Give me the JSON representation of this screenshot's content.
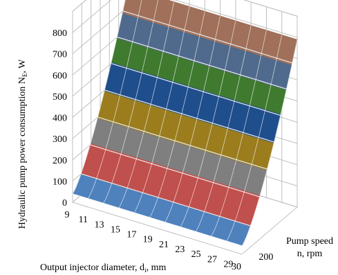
{
  "chart_data": {
    "type": "surface",
    "zlabel": "Hydraulic pump power consumption N",
    "zlabel_subscript": "E",
    "zlabel_unit": ", W",
    "xlabel": "Output injector diameter, d",
    "xlabel_subscript": "i",
    "xlabel_unit": ", mm",
    "ylabel_line1": "Pump speed",
    "ylabel_line2": "n, rpm",
    "x_ticks": [
      "9",
      "11",
      "13",
      "15",
      "17",
      "19",
      "21",
      "23",
      "25",
      "27",
      "29",
      "30"
    ],
    "x_values": [
      9,
      11,
      13,
      15,
      17,
      19,
      21,
      23,
      25,
      27,
      29,
      30
    ],
    "y_ticks": [
      "200"
    ],
    "z_ticks": [
      "0",
      "100",
      "200",
      "300",
      "400",
      "500",
      "600",
      "700",
      "800"
    ],
    "zlim": [
      0,
      800
    ],
    "bands": [
      {
        "range": [
          0,
          100
        ],
        "color": "#4f81bd"
      },
      {
        "range": [
          100,
          200
        ],
        "color": "#c0504d"
      },
      {
        "range": [
          200,
          300
        ],
        "color": "#7f7f7f"
      },
      {
        "range": [
          300,
          400
        ],
        "color": "#9b7d1e"
      },
      {
        "range": [
          400,
          500
        ],
        "color": "#1f4e8c"
      },
      {
        "range": [
          500,
          600
        ],
        "color": "#3f7a2e"
      },
      {
        "range": [
          600,
          700
        ],
        "color": "#4f6a8c"
      },
      {
        "range": [
          700,
          800
        ],
        "color": "#a0705a"
      }
    ],
    "surface_note_z_at_min_speed": 40,
    "surface_note_z_at_max_speed": 790,
    "grid": true
  }
}
